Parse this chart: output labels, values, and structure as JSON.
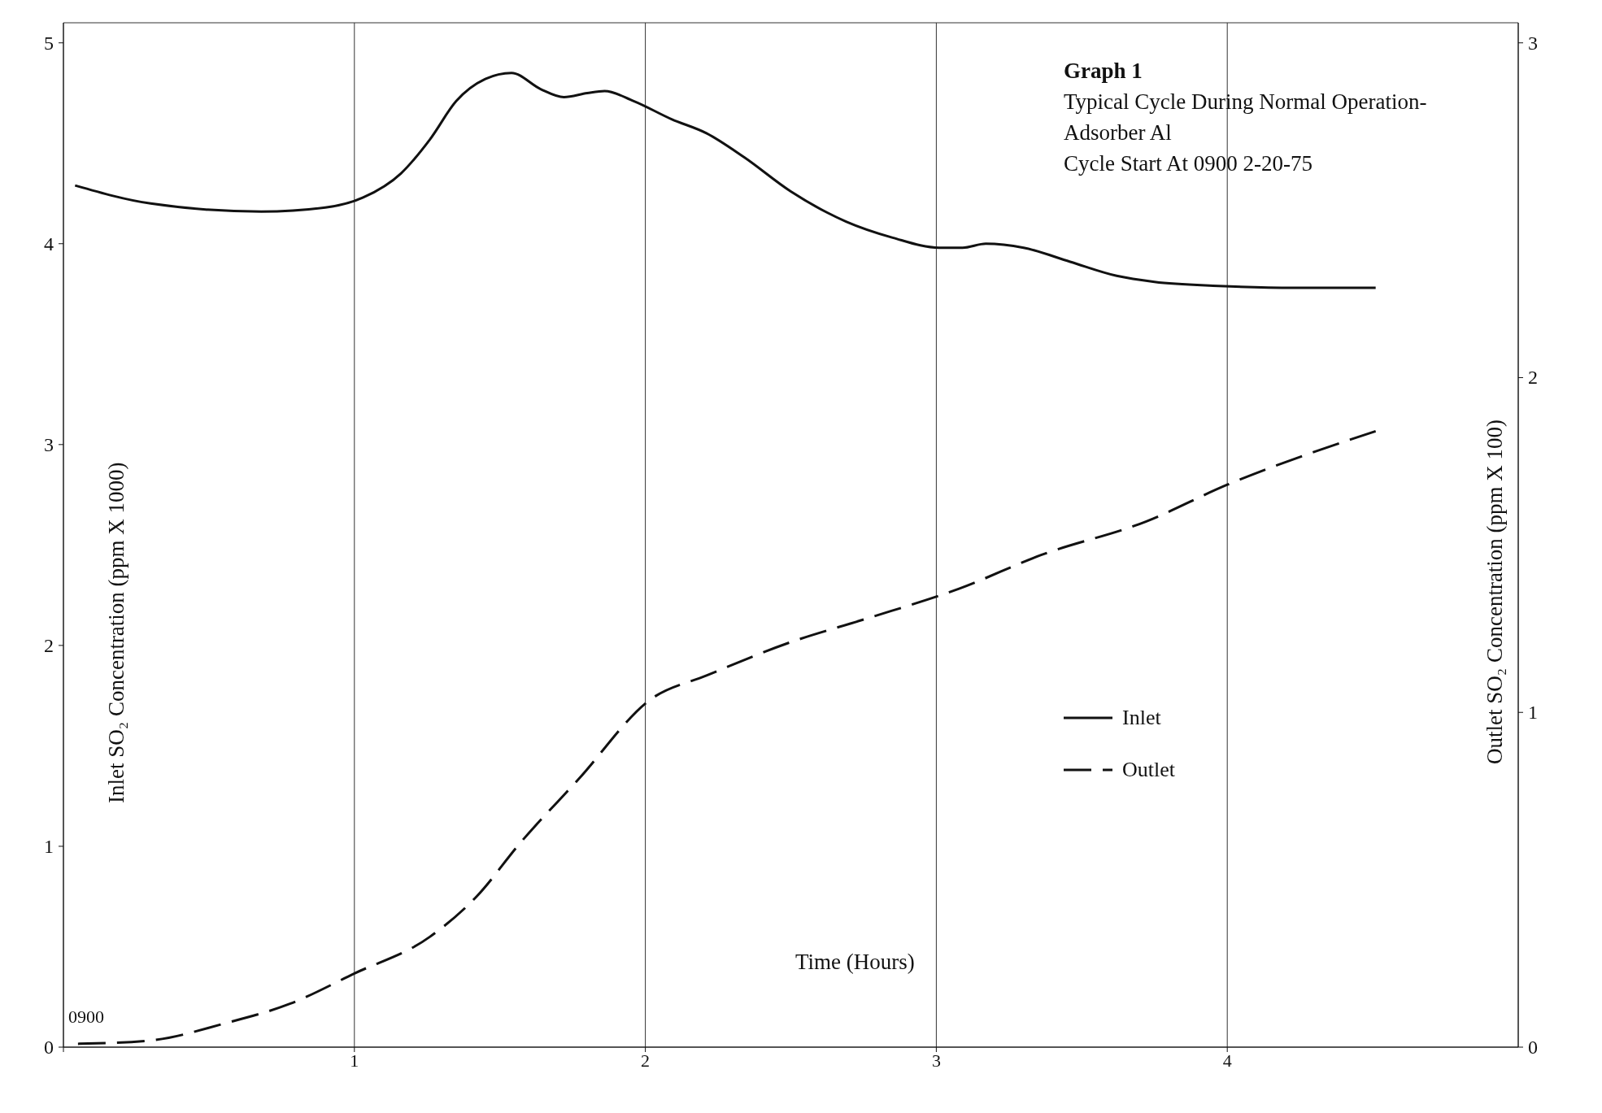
{
  "chart_data": {
    "type": "line",
    "title": "Graph 1",
    "subtitle": "Typical Cycle During Normal Operation-Adsorber Al",
    "annotations": [
      "Cycle Start At 0900  2-20-75",
      "0900"
    ],
    "xlabel": "Time (Hours)",
    "ylabel": "Inlet SO₂ Concentration (ppm X 1000)",
    "y2label": "Outlet SO₂ Concentration (ppm X 100)",
    "xlim": [
      0,
      5
    ],
    "xticks": [
      {
        "value": 0,
        "label": null
      },
      1,
      2,
      3,
      4
    ],
    "ylim": [
      0,
      5.1
    ],
    "yticks": [
      0,
      1,
      2,
      3,
      4,
      5
    ],
    "y2lim": [
      0,
      3.06
    ],
    "y2ticks": [
      0,
      1,
      2,
      3
    ],
    "grid": true,
    "legend": "bottom right",
    "marker": "none",
    "series": [
      {
        "name": "Inlet",
        "color": "#111111",
        "line_style": "solid",
        "x": [
          0.04,
          0.3,
          0.68,
          0.9,
          1.03,
          1.16,
          1.26,
          1.35,
          1.45,
          1.54,
          1.64,
          1.72,
          1.8,
          1.86,
          1.96,
          2.09,
          2.21,
          2.34,
          2.5,
          2.69,
          2.85,
          3.01,
          3.09,
          3.17,
          3.3,
          3.46,
          3.62,
          3.75,
          3.97,
          4.23,
          4.51
        ],
        "values": [
          4.29,
          4.2,
          4.16,
          4.18,
          4.23,
          4.35,
          4.52,
          4.71,
          4.82,
          4.85,
          4.77,
          4.73,
          4.75,
          4.76,
          4.71,
          4.62,
          4.55,
          4.43,
          4.26,
          4.11,
          4.03,
          3.98,
          3.98,
          4.0,
          3.98,
          3.91,
          3.84,
          3.81,
          3.79,
          3.78,
          3.78
        ]
      },
      {
        "name": "Outlet",
        "color": "#111111",
        "line_style": "dashed",
        "axis": "y2",
        "x": [
          0.05,
          0.3,
          0.55,
          0.78,
          1.0,
          1.26,
          1.42,
          1.57,
          1.77,
          2.02,
          2.21,
          2.5,
          2.76,
          3.08,
          3.36,
          3.72,
          4.0,
          4.51
        ],
        "values": [
          0.01,
          0.02,
          0.07,
          0.13,
          0.22,
          0.33,
          0.45,
          0.61,
          0.8,
          1.04,
          1.11,
          1.21,
          1.28,
          1.37,
          1.47,
          1.57,
          1.68,
          1.84
        ]
      }
    ]
  }
}
